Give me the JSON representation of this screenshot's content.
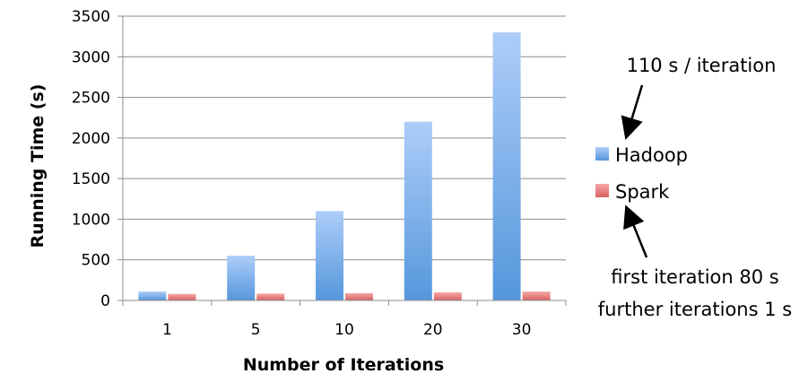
{
  "colors": {
    "hadoop_top": "#aecdf9",
    "hadoop_bottom": "#5597dc",
    "spark_top": "#f6a6a6",
    "spark_bottom": "#d96262",
    "grid": "#8c8c8c",
    "axis": "#8c8c8c"
  },
  "legend": {
    "items": [
      {
        "name": "Hadoop",
        "icon": "blue-square-icon"
      },
      {
        "name": "Spark",
        "icon": "red-square-icon"
      }
    ],
    "placement": "right"
  },
  "annotations": {
    "hadoop_note": "110 s / iteration",
    "spark_note_line1": "first iteration 80 s",
    "spark_note_line2": "further iterations 1 s"
  },
  "chart_data": {
    "type": "bar",
    "xlabel": "Number of Iterations",
    "ylabel": "Running Time (s)",
    "categories": [
      "1",
      "5",
      "10",
      "20",
      "30"
    ],
    "series": [
      {
        "name": "Hadoop",
        "values": [
          110,
          550,
          1100,
          2200,
          3300
        ]
      },
      {
        "name": "Spark",
        "values": [
          80,
          84,
          89,
          99,
          109
        ]
      }
    ],
    "ylim": [
      0,
      3500
    ],
    "yticks": [
      0,
      500,
      1000,
      1500,
      2000,
      2500,
      3000,
      3500
    ],
    "grid": true
  }
}
